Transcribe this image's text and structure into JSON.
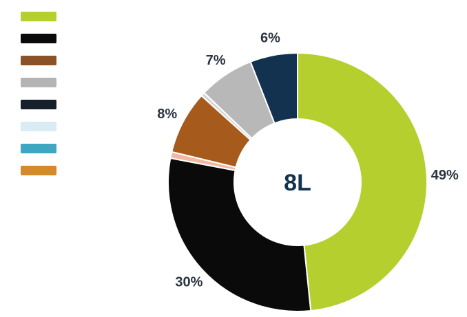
{
  "chart_data": {
    "type": "pie",
    "variant": "donut",
    "center_label": "8L",
    "legend_position": "left",
    "slices": [
      {
        "label": "",
        "value": 49,
        "display": "49%",
        "color": "#b5cf2e"
      },
      {
        "label": "",
        "value": 30,
        "display": "30%",
        "color": "#0a0a0a"
      },
      {
        "label": "",
        "value": 0.8,
        "display": "",
        "color": "#f2b9a0"
      },
      {
        "label": "",
        "value": 8,
        "display": "8%",
        "color": "#a65a1c"
      },
      {
        "label": "",
        "value": 0.5,
        "display": "",
        "color": "#d7d7d7"
      },
      {
        "label": "",
        "value": 7,
        "display": "7%",
        "color": "#b8b8b8"
      },
      {
        "label": "",
        "value": 6,
        "display": "6%",
        "color": "#13324f"
      }
    ],
    "legend": [
      {
        "label": "",
        "color": "#b5cf2e"
      },
      {
        "label": "",
        "color": "#0a0a0a"
      },
      {
        "label": "",
        "color": "#8a5226"
      },
      {
        "label": "",
        "color": "#b4b4b4"
      },
      {
        "label": "",
        "color": "#16202b"
      },
      {
        "label": "",
        "color": "#d9ecf5"
      },
      {
        "label": "",
        "color": "#3ea6c1"
      },
      {
        "label": "",
        "color": "#d4892a"
      }
    ]
  }
}
